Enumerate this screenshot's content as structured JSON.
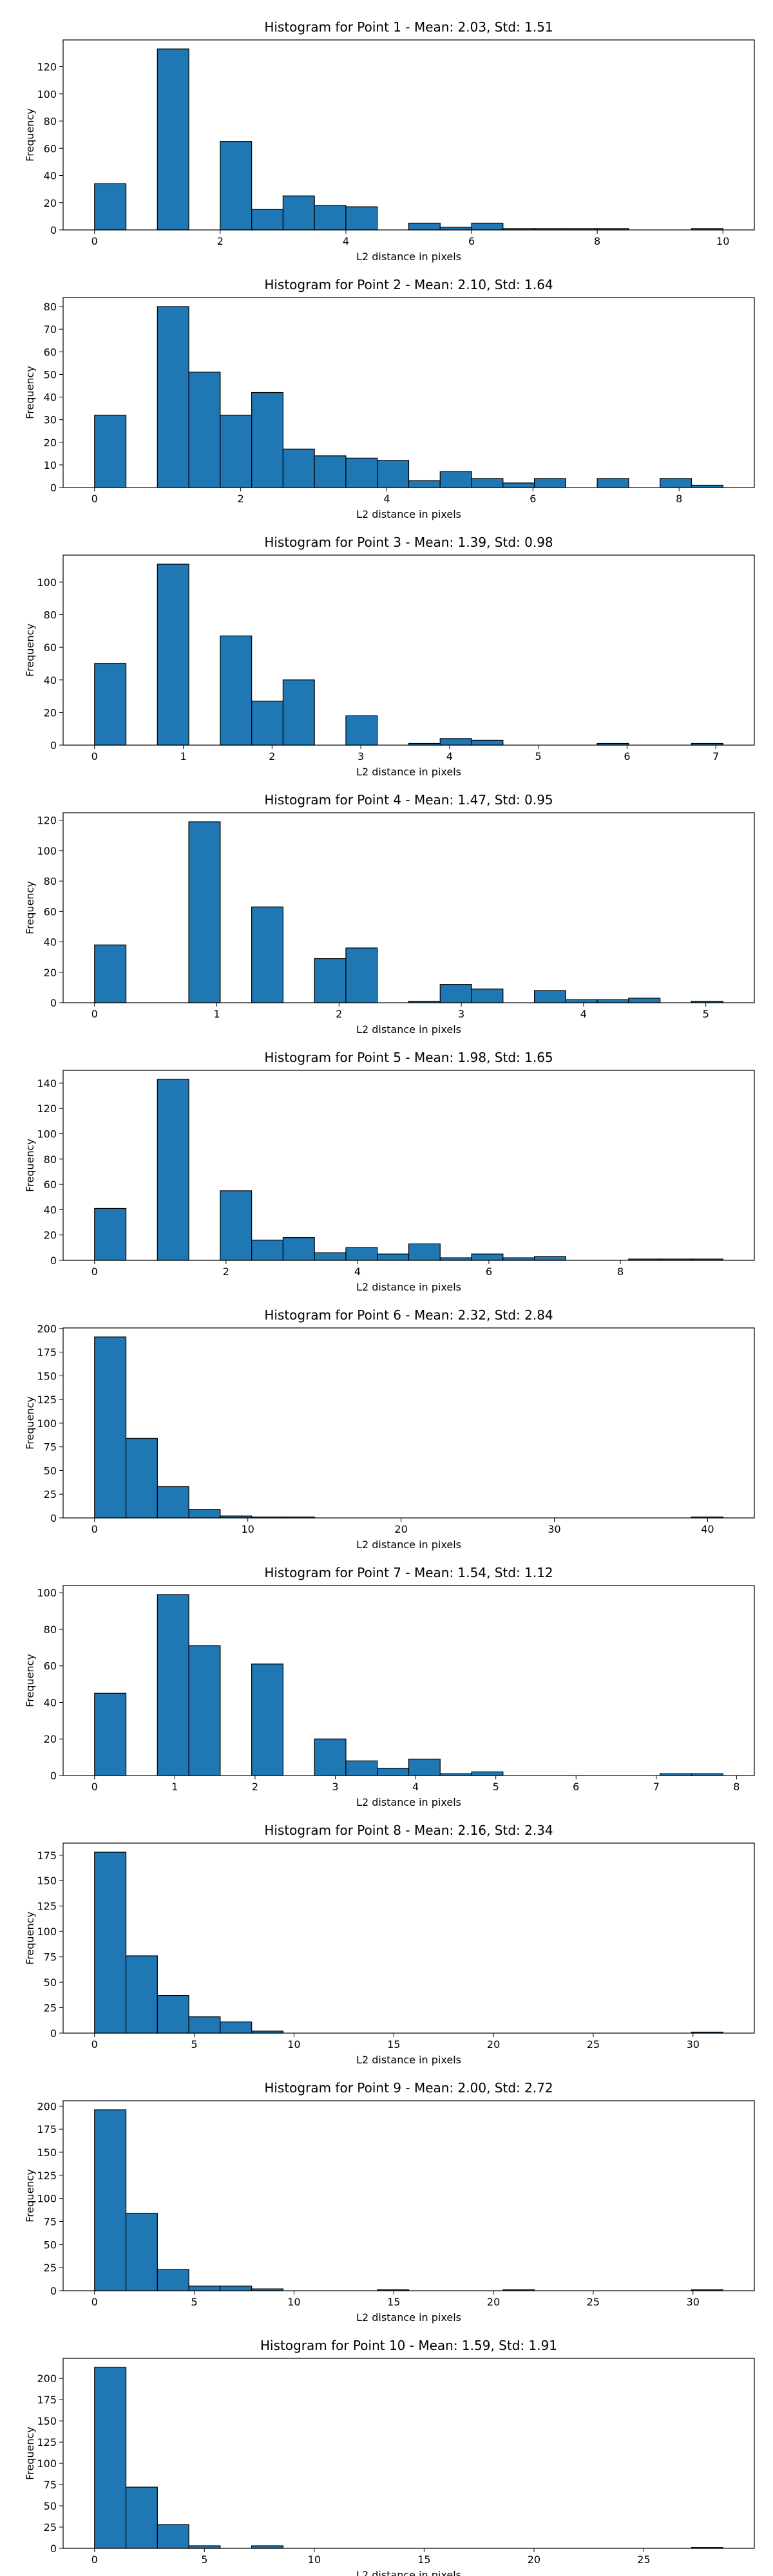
{
  "chart_data": [
    {
      "type": "histogram",
      "title": "Histogram for Point 1 - Mean: 2.03, Std: 1.51",
      "xlabel": "L2 distance in pixels",
      "ylabel": "Frequency",
      "color": "#1f77b4",
      "bins": [
        0,
        0.5,
        1,
        1.5,
        2,
        2.5,
        3,
        3.5,
        4,
        4.5,
        5,
        5.5,
        6,
        6.5,
        7,
        7.5,
        8,
        8.5,
        9,
        9.5,
        10
      ],
      "counts": [
        34,
        0,
        133,
        0,
        65,
        15,
        25,
        18,
        17,
        0,
        5,
        2,
        5,
        1,
        1,
        1,
        1,
        0,
        0,
        1
      ],
      "xlim": [
        -0.5,
        10.5
      ],
      "ylim": [
        0,
        139.65
      ],
      "xticks": [
        0,
        2,
        4,
        6,
        8,
        10
      ],
      "yticks": [
        0,
        20,
        40,
        60,
        80,
        100,
        120
      ]
    },
    {
      "type": "histogram",
      "title": "Histogram for Point 2 - Mean: 2.10, Std: 1.64",
      "xlabel": "L2 distance in pixels",
      "ylabel": "Frequency",
      "color": "#1f77b4",
      "bins": [
        0,
        0.43,
        0.86,
        1.29,
        1.72,
        2.15,
        2.58,
        3.01,
        3.44,
        3.87,
        4.3,
        4.73,
        5.16,
        5.59,
        6.02,
        6.45,
        6.88,
        7.31,
        7.74,
        8.17,
        8.6
      ],
      "counts": [
        32,
        0,
        80,
        51,
        32,
        42,
        17,
        14,
        13,
        12,
        3,
        7,
        4,
        2,
        4,
        0,
        4,
        0,
        4,
        1
      ],
      "xlim": [
        -0.43,
        9.03
      ],
      "ylim": [
        0,
        84
      ],
      "xticks": [
        0,
        2,
        4,
        6,
        8
      ],
      "yticks": [
        0,
        10,
        20,
        30,
        40,
        50,
        60,
        70,
        80
      ]
    },
    {
      "type": "histogram",
      "title": "Histogram for Point 3 - Mean: 1.39, Std: 0.98",
      "xlabel": "L2 distance in pixels",
      "ylabel": "Frequency",
      "color": "#1f77b4",
      "bins": [
        0,
        0.354,
        0.708,
        1.062,
        1.416,
        1.77,
        2.124,
        2.478,
        2.832,
        3.186,
        3.54,
        3.894,
        4.248,
        4.602,
        4.956,
        5.31,
        5.664,
        6.018,
        6.372,
        6.726,
        7.08
      ],
      "counts": [
        50,
        0,
        111,
        0,
        67,
        27,
        40,
        0,
        18,
        0,
        1,
        4,
        3,
        0,
        0,
        0,
        1,
        0,
        0,
        1
      ],
      "xlim": [
        -0.354,
        7.434
      ],
      "ylim": [
        0,
        116.55
      ],
      "xticks": [
        0,
        1,
        2,
        3,
        4,
        5,
        6,
        7
      ],
      "yticks": [
        0,
        20,
        40,
        60,
        80,
        100
      ]
    },
    {
      "type": "histogram",
      "title": "Histogram for Point 4 - Mean: 1.47, Std: 0.95",
      "xlabel": "L2 distance in pixels",
      "ylabel": "Frequency",
      "color": "#1f77b4",
      "bins": [
        0,
        0.257,
        0.514,
        0.771,
        1.028,
        1.285,
        1.542,
        1.799,
        2.056,
        2.313,
        2.57,
        2.827,
        3.084,
        3.341,
        3.598,
        3.855,
        4.112,
        4.369,
        4.626,
        4.883,
        5.14
      ],
      "counts": [
        38,
        0,
        0,
        119,
        0,
        63,
        0,
        29,
        36,
        0,
        1,
        12,
        9,
        0,
        8,
        2,
        2,
        3,
        0,
        1
      ],
      "xlim": [
        -0.257,
        5.397
      ],
      "ylim": [
        0,
        124.95
      ],
      "xticks": [
        0,
        1,
        2,
        3,
        4,
        5
      ],
      "yticks": [
        0,
        20,
        40,
        60,
        80,
        100,
        120
      ]
    },
    {
      "type": "histogram",
      "title": "Histogram for Point 5 - Mean: 1.98, Std: 1.65",
      "xlabel": "L2 distance in pixels",
      "ylabel": "Frequency",
      "color": "#1f77b4",
      "bins": [
        0,
        0.478,
        0.956,
        1.434,
        1.912,
        2.39,
        2.868,
        3.346,
        3.824,
        4.302,
        4.78,
        5.258,
        5.736,
        6.214,
        6.692,
        7.17,
        7.648,
        8.126,
        8.604,
        9.082,
        9.56
      ],
      "counts": [
        41,
        0,
        143,
        0,
        55,
        16,
        18,
        6,
        10,
        5,
        13,
        2,
        5,
        2,
        3,
        0,
        0,
        1,
        1,
        1
      ],
      "xlim": [
        -0.478,
        10.038
      ],
      "ylim": [
        0,
        150.15
      ],
      "xticks": [
        0,
        2,
        4,
        6,
        8
      ],
      "yticks": [
        0,
        20,
        40,
        60,
        80,
        100,
        120,
        140
      ]
    },
    {
      "type": "histogram",
      "title": "Histogram for Point 6 - Mean: 2.32, Std: 2.84",
      "xlabel": "L2 distance in pixels",
      "ylabel": "Frequency",
      "color": "#1f77b4",
      "bins": [
        0,
        2.05,
        4.1,
        6.15,
        8.2,
        10.25,
        12.3,
        14.35,
        16.4,
        18.45,
        20.5,
        22.55,
        24.6,
        26.65,
        28.7,
        30.75,
        32.8,
        34.85,
        36.9,
        38.95,
        41
      ],
      "counts": [
        191,
        84,
        33,
        9,
        2,
        1,
        1,
        0,
        0,
        0,
        0,
        0,
        0,
        0,
        0,
        0,
        0,
        0,
        0,
        1
      ],
      "xlim": [
        -2.05,
        43.05
      ],
      "ylim": [
        0,
        200.55
      ],
      "xticks": [
        0,
        10,
        20,
        30,
        40
      ],
      "yticks": [
        0,
        25,
        50,
        75,
        100,
        125,
        150,
        175,
        200
      ]
    },
    {
      "type": "histogram",
      "title": "Histogram for Point 7 - Mean: 1.54, Std: 1.12",
      "xlabel": "L2 distance in pixels",
      "ylabel": "Frequency",
      "color": "#1f77b4",
      "bins": [
        0,
        0.3915,
        0.783,
        1.1745,
        1.566,
        1.9575,
        2.349,
        2.7405,
        3.132,
        3.5235,
        3.915,
        4.3065,
        4.698,
        5.0895,
        5.481,
        5.8725,
        6.264,
        6.6555,
        7.047,
        7.4385,
        7.83
      ],
      "counts": [
        45,
        0,
        99,
        71,
        0,
        61,
        0,
        20,
        8,
        4,
        9,
        1,
        2,
        0,
        0,
        0,
        0,
        0,
        1,
        1
      ],
      "xlim": [
        -0.3915,
        8.2215
      ],
      "ylim": [
        0,
        103.95
      ],
      "xticks": [
        0,
        1,
        2,
        3,
        4,
        5,
        6,
        7,
        8
      ],
      "yticks": [
        0,
        20,
        40,
        60,
        80,
        100
      ]
    },
    {
      "type": "histogram",
      "title": "Histogram for Point 8 - Mean: 2.16, Std: 2.34",
      "xlabel": "L2 distance in pixels",
      "ylabel": "Frequency",
      "color": "#1f77b4",
      "bins": [
        0,
        1.575,
        3.15,
        4.725,
        6.3,
        7.875,
        9.45,
        11.025,
        12.6,
        14.175,
        15.75,
        17.325,
        18.9,
        20.475,
        22.05,
        23.625,
        25.2,
        26.775,
        28.35,
        29.925,
        31.5
      ],
      "counts": [
        178,
        76,
        37,
        16,
        11,
        2,
        0,
        0,
        0,
        0,
        0,
        0,
        0,
        0,
        0,
        0,
        0,
        0,
        0,
        1
      ],
      "xlim": [
        -1.575,
        33.075
      ],
      "ylim": [
        0,
        186.9
      ],
      "xticks": [
        0,
        5,
        10,
        15,
        20,
        25,
        30
      ],
      "yticks": [
        0,
        25,
        50,
        75,
        100,
        125,
        150,
        175
      ]
    },
    {
      "type": "histogram",
      "title": "Histogram for Point 9 - Mean: 2.00, Std: 2.72",
      "xlabel": "L2 distance in pixels",
      "ylabel": "Frequency",
      "color": "#1f77b4",
      "bins": [
        0,
        1.575,
        3.15,
        4.725,
        6.3,
        7.875,
        9.45,
        11.025,
        12.6,
        14.175,
        15.75,
        17.325,
        18.9,
        20.475,
        22.05,
        23.625,
        25.2,
        26.775,
        28.35,
        29.925,
        31.5
      ],
      "counts": [
        196,
        84,
        23,
        5,
        5,
        2,
        0,
        0,
        0,
        1,
        0,
        0,
        0,
        1,
        0,
        0,
        0,
        0,
        0,
        1
      ],
      "xlim": [
        -1.575,
        33.075
      ],
      "ylim": [
        0,
        205.8
      ],
      "xticks": [
        0,
        5,
        10,
        15,
        20,
        25,
        30
      ],
      "yticks": [
        0,
        25,
        50,
        75,
        100,
        125,
        150,
        175,
        200
      ]
    },
    {
      "type": "histogram",
      "title": "Histogram for Point 10 - Mean: 1.59, Std: 1.91",
      "xlabel": "L2 distance in pixels",
      "ylabel": "Frequency",
      "color": "#1f77b4",
      "bins": [
        0,
        1.43,
        2.86,
        4.29,
        5.72,
        7.15,
        8.58,
        10.01,
        11.44,
        12.87,
        14.3,
        15.73,
        17.16,
        18.59,
        20.02,
        21.45,
        22.88,
        24.31,
        25.74,
        27.17,
        28.6
      ],
      "counts": [
        213,
        72,
        28,
        3,
        0,
        3,
        0,
        0,
        0,
        0,
        0,
        0,
        0,
        0,
        0,
        0,
        0,
        0,
        0,
        1
      ],
      "xlim": [
        -1.43,
        30.03
      ],
      "ylim": [
        0,
        223.65
      ],
      "xticks": [
        0,
        5,
        10,
        15,
        20,
        25
      ],
      "yticks": [
        0,
        25,
        50,
        75,
        100,
        125,
        150,
        175,
        200
      ]
    }
  ]
}
